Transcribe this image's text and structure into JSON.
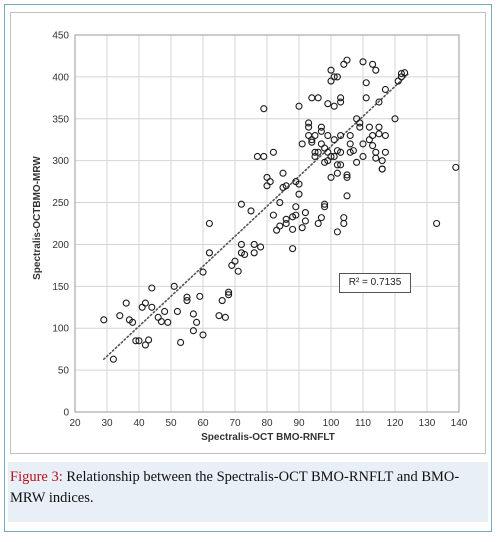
{
  "caption": {
    "label": "Figure 3:",
    "text": " Relationship between the Spectralis-OCT BMO-RNFLT and BMO-MRW indices."
  },
  "chart_data": {
    "type": "scatter",
    "xlabel": "Spectralis-OCT BMO-RNFLT",
    "ylabel": "Spectralis-OCTBMO-MRW",
    "xlim": [
      20,
      140
    ],
    "ylim": [
      0,
      450
    ],
    "x_ticks": [
      "20",
      "30",
      "40",
      "50",
      "60",
      "70",
      "80",
      "90",
      "100",
      "110",
      "120",
      "130",
      "140"
    ],
    "y_ticks": [
      "0",
      "50",
      "100",
      "150",
      "200",
      "250",
      "300",
      "350",
      "400",
      "450"
    ],
    "grid": true,
    "annotation": "R² = 0.7135",
    "trendline": {
      "x": [
        29,
        124
      ],
      "y": [
        63,
        403
      ]
    },
    "points": [
      [
        29,
        110
      ],
      [
        32,
        63
      ],
      [
        34,
        115
      ],
      [
        36,
        130
      ],
      [
        37,
        110
      ],
      [
        38,
        107
      ],
      [
        39,
        85
      ],
      [
        40,
        85
      ],
      [
        41,
        125
      ],
      [
        42,
        80
      ],
      [
        42,
        130
      ],
      [
        43,
        86
      ],
      [
        44,
        125
      ],
      [
        44,
        148
      ],
      [
        46,
        113
      ],
      [
        47,
        108
      ],
      [
        48,
        120
      ],
      [
        49,
        107
      ],
      [
        51,
        150
      ],
      [
        52,
        120
      ],
      [
        53,
        83
      ],
      [
        55,
        133
      ],
      [
        55,
        137
      ],
      [
        57,
        97
      ],
      [
        57,
        117
      ],
      [
        58,
        107
      ],
      [
        59,
        138
      ],
      [
        60,
        92
      ],
      [
        60,
        167
      ],
      [
        62,
        190
      ],
      [
        62,
        225
      ],
      [
        65,
        115
      ],
      [
        66,
        133
      ],
      [
        67,
        113
      ],
      [
        68,
        140
      ],
      [
        68,
        143
      ],
      [
        69,
        175
      ],
      [
        70,
        180
      ],
      [
        71,
        168
      ],
      [
        72,
        200
      ],
      [
        72,
        248
      ],
      [
        72,
        190
      ],
      [
        73,
        188
      ],
      [
        75,
        240
      ],
      [
        76,
        190
      ],
      [
        76,
        200
      ],
      [
        77,
        305
      ],
      [
        78,
        197
      ],
      [
        79,
        305
      ],
      [
        79,
        362
      ],
      [
        80,
        270
      ],
      [
        80,
        280
      ],
      [
        81,
        275
      ],
      [
        82,
        310
      ],
      [
        82,
        235
      ],
      [
        83,
        217
      ],
      [
        84,
        222
      ],
      [
        84,
        250
      ],
      [
        85,
        285
      ],
      [
        85,
        268
      ],
      [
        86,
        230
      ],
      [
        86,
        270
      ],
      [
        86,
        225
      ],
      [
        88,
        233
      ],
      [
        88,
        195
      ],
      [
        88,
        218
      ],
      [
        89,
        235
      ],
      [
        89,
        245
      ],
      [
        89,
        275
      ],
      [
        90,
        272
      ],
      [
        90,
        260
      ],
      [
        90,
        365
      ],
      [
        91,
        320
      ],
      [
        91,
        220
      ],
      [
        92,
        228
      ],
      [
        92,
        238
      ],
      [
        93,
        340
      ],
      [
        93,
        345
      ],
      [
        93,
        330
      ],
      [
        94,
        325
      ],
      [
        94,
        322
      ],
      [
        94,
        375
      ],
      [
        95,
        310
      ],
      [
        95,
        305
      ],
      [
        95,
        330
      ],
      [
        96,
        375
      ],
      [
        96,
        310
      ],
      [
        96,
        225
      ],
      [
        97,
        340
      ],
      [
        97,
        232
      ],
      [
        97,
        335
      ],
      [
        97,
        320
      ],
      [
        98,
        298
      ],
      [
        98,
        245
      ],
      [
        98,
        248
      ],
      [
        98,
        315
      ],
      [
        99,
        330
      ],
      [
        99,
        368
      ],
      [
        99,
        310
      ],
      [
        99,
        300
      ],
      [
        100,
        395
      ],
      [
        100,
        408
      ],
      [
        100,
        280
      ],
      [
        100,
        305
      ],
      [
        101,
        400
      ],
      [
        101,
        365
      ],
      [
        101,
        325
      ],
      [
        101,
        305
      ],
      [
        102,
        312
      ],
      [
        102,
        400
      ],
      [
        102,
        295
      ],
      [
        102,
        285
      ],
      [
        102,
        215
      ],
      [
        103,
        295
      ],
      [
        103,
        375
      ],
      [
        103,
        370
      ],
      [
        103,
        310
      ],
      [
        103,
        330
      ],
      [
        104,
        415
      ],
      [
        104,
        232
      ],
      [
        104,
        225
      ],
      [
        105,
        420
      ],
      [
        105,
        258
      ],
      [
        105,
        283
      ],
      [
        105,
        280
      ],
      [
        106,
        330
      ],
      [
        106,
        320
      ],
      [
        106,
        310
      ],
      [
        107,
        312
      ],
      [
        108,
        298
      ],
      [
        108,
        350
      ],
      [
        109,
        340
      ],
      [
        109,
        345
      ],
      [
        110,
        418
      ],
      [
        110,
        320
      ],
      [
        110,
        305
      ],
      [
        111,
        375
      ],
      [
        111,
        393
      ],
      [
        112,
        325
      ],
      [
        112,
        340
      ],
      [
        113,
        415
      ],
      [
        113,
        318
      ],
      [
        113,
        330
      ],
      [
        114,
        408
      ],
      [
        114,
        310
      ],
      [
        114,
        303
      ],
      [
        115,
        370
      ],
      [
        115,
        340
      ],
      [
        115,
        332
      ],
      [
        116,
        300
      ],
      [
        116,
        290
      ],
      [
        116,
        290
      ],
      [
        117,
        385
      ],
      [
        117,
        330
      ],
      [
        117,
        310
      ],
      [
        120,
        350
      ],
      [
        121,
        395
      ],
      [
        122,
        400
      ],
      [
        122,
        404
      ],
      [
        123,
        405
      ],
      [
        133,
        225
      ],
      [
        139,
        292
      ]
    ]
  }
}
